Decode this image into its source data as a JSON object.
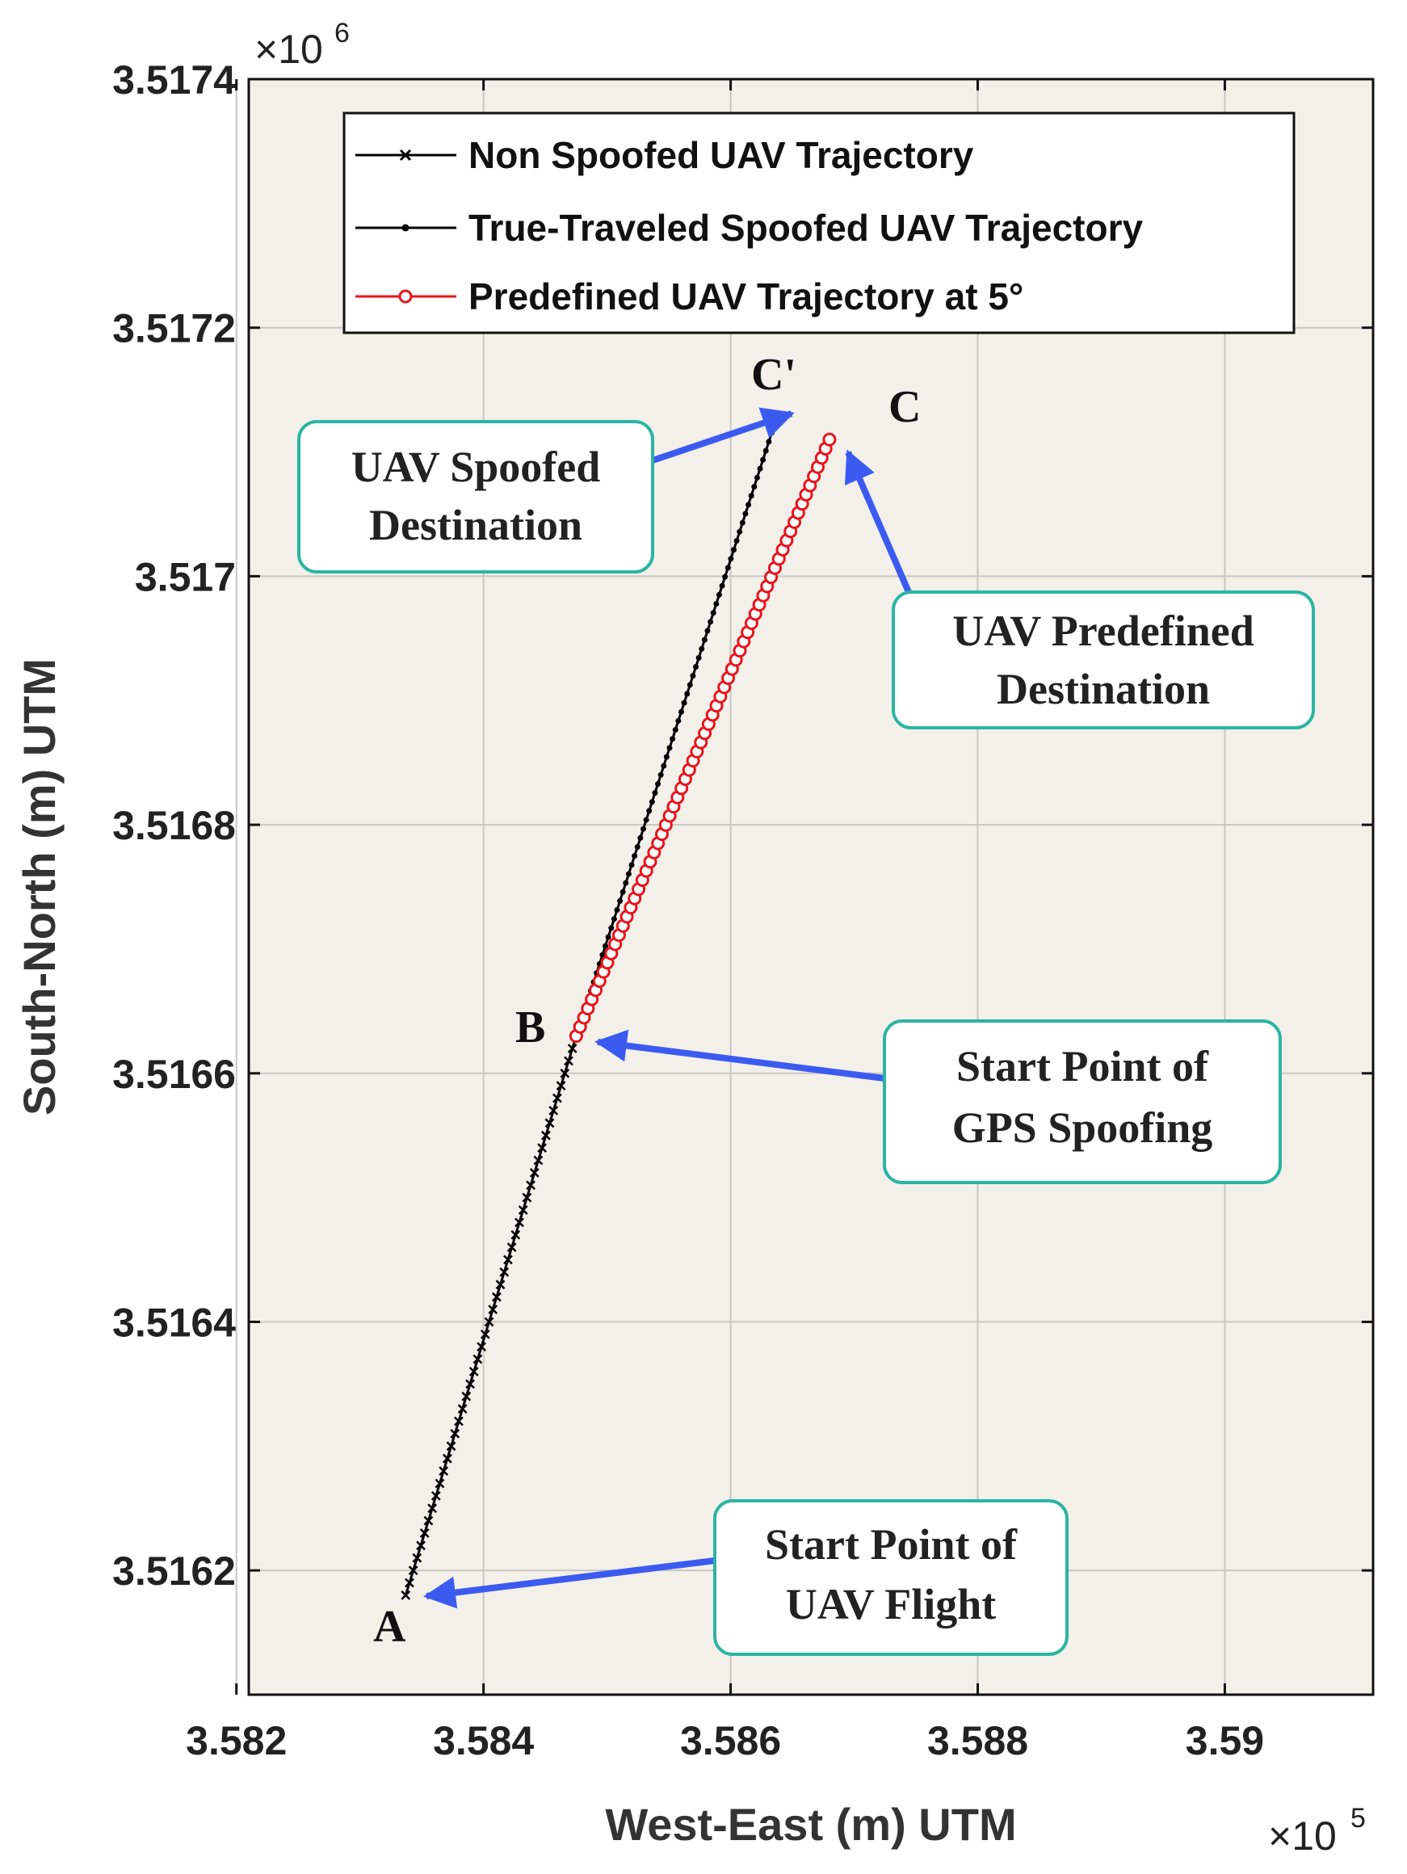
{
  "chart_data": {
    "type": "line",
    "title": "",
    "xlabel": "West-East (m) UTM",
    "ylabel": "South-North (m) UTM",
    "x_exponent": {
      "base": "×10",
      "power": "5"
    },
    "y_exponent": {
      "base": "×10",
      "power": "6"
    },
    "xlim": [
      3.5821,
      3.5912
    ],
    "ylim": [
      3.5161,
      3.5174
    ],
    "xticks": [
      3.582,
      3.584,
      3.586,
      3.588,
      3.59
    ],
    "xtick_labels": [
      "3.582",
      "3.584",
      "3.586",
      "3.588",
      "3.59"
    ],
    "yticks": [
      3.5162,
      3.5164,
      3.5166,
      3.5168,
      3.517,
      3.5172,
      3.5174
    ],
    "ytick_labels": [
      "3.5162",
      "3.5164",
      "3.5166",
      "3.5168",
      "3.517",
      "3.5172",
      "3.5174"
    ],
    "grid": true,
    "legend_position": "top",
    "series": [
      {
        "name": "Non Spoofed UAV Trajectory",
        "color": "#000000",
        "marker": "x",
        "start": [
          3.58337,
          3.51618
        ],
        "end": [
          3.58475,
          3.51663
        ],
        "num_points": 46
      },
      {
        "name": "True-Traveled Spoofed UAV Trajectory",
        "color": "#000000",
        "marker": "dot",
        "start": [
          3.58475,
          3.51663
        ],
        "end": [
          3.58638,
          3.51713
        ],
        "num_points": 70
      },
      {
        "name": "Predefined UAV Trajectory at 5°",
        "color": "#e8141c",
        "marker": "circle",
        "start": [
          3.58475,
          3.51663
        ],
        "end": [
          3.5868,
          3.51711
        ],
        "num_points": 66
      }
    ],
    "point_labels": [
      {
        "text": "A",
        "x": 3.5833,
        "y": 3.51615
      },
      {
        "text": "B",
        "x": 3.58452,
        "y": 3.51663
      },
      {
        "text": "C'",
        "x": 3.58635,
        "y": 3.51719
      },
      {
        "text": "C",
        "x": 3.58727,
        "y": 3.51714
      }
    ],
    "annotations": [
      {
        "lines": [
          "UAV Spoofed",
          "Destination"
        ],
        "target": [
          3.58638,
          3.51713
        ]
      },
      {
        "lines": [
          "UAV Predefined",
          "Destination"
        ],
        "target": [
          3.5868,
          3.51711
        ]
      },
      {
        "lines": [
          "Start Point of",
          "GPS Spoofing"
        ],
        "target": [
          3.58475,
          3.51663
        ]
      },
      {
        "lines": [
          "Start Point of",
          "UAV Flight"
        ],
        "target": [
          3.58337,
          3.51618
        ]
      }
    ]
  }
}
